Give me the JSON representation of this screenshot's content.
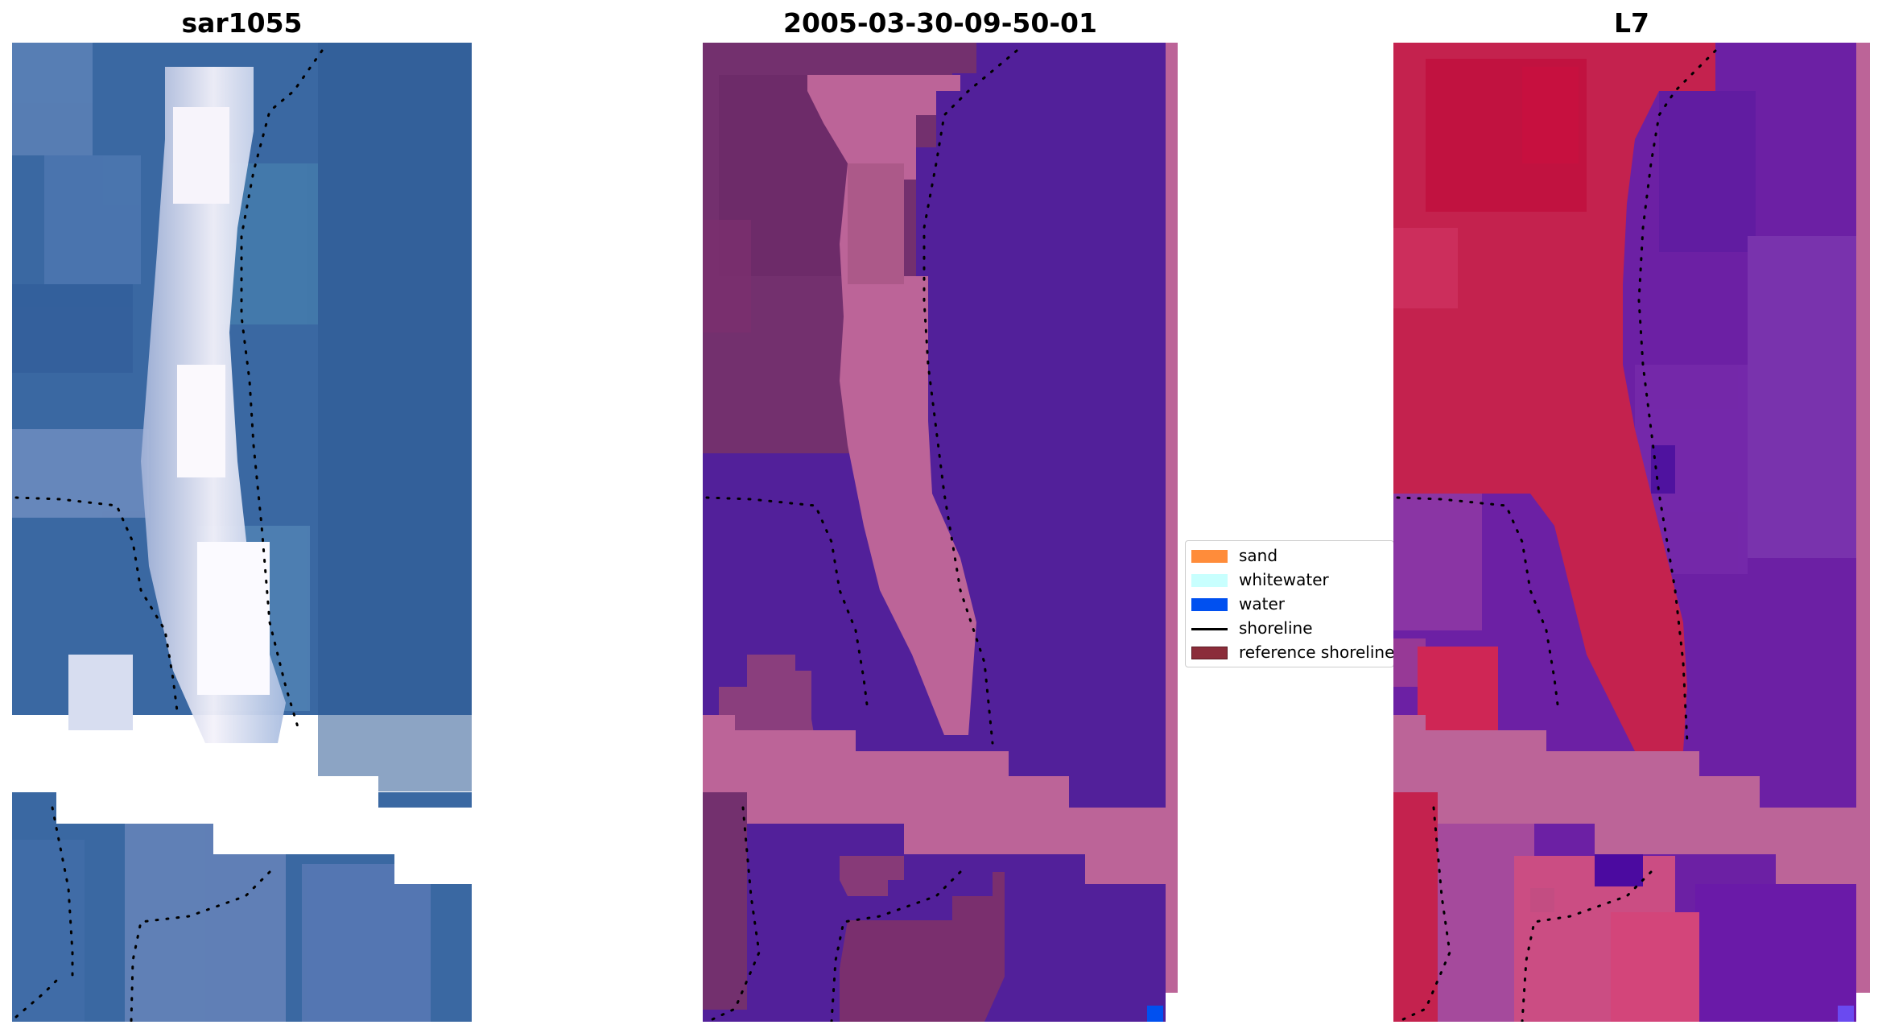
{
  "panels": [
    {
      "title": "sar1055"
    },
    {
      "title": "2005-03-30-09-50-01"
    },
    {
      "title": "L7"
    }
  ],
  "legend": {
    "items": [
      {
        "label": "sand",
        "color": "#ff8c3a"
      },
      {
        "label": "whitewater",
        "color": "#c8fffe"
      },
      {
        "label": "water",
        "color": "#0050f0"
      },
      {
        "label": "shoreline",
        "color": "#000000"
      },
      {
        "label": "reference shoreline",
        "color": "#8b2d3a"
      }
    ]
  },
  "colors": {
    "rgb_water": "#3a68a2",
    "rgb_sand": "#dcdcf0",
    "class_water": "#52209a",
    "class_beach": "#bc6498",
    "class_dark": "#73306e",
    "ndwi_water": "#6c20a4",
    "ndwi_land": "#c4224e",
    "nodata_band": "#bc6498"
  }
}
